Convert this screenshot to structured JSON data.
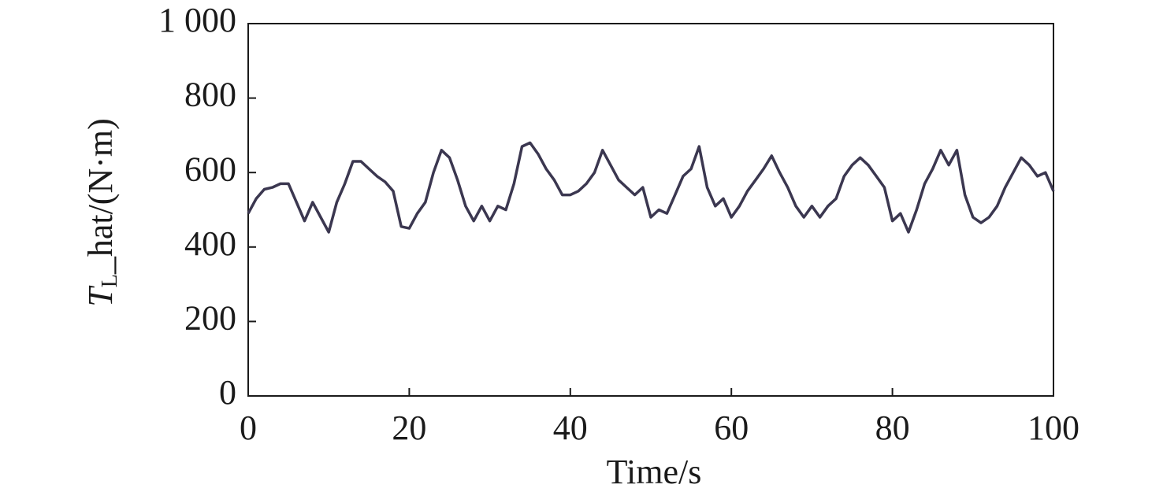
{
  "chart_data": {
    "type": "line",
    "xlabel": "Time/s",
    "ylabel": [
      "T",
      "L",
      "_hat/(N·m)"
    ],
    "x": [
      0,
      1,
      2,
      3,
      4,
      5,
      6,
      7,
      8,
      9,
      10,
      11,
      12,
      13,
      14,
      15,
      16,
      17,
      18,
      19,
      20,
      21,
      22,
      23,
      24,
      25,
      26,
      27,
      28,
      29,
      30,
      31,
      32,
      33,
      34,
      35,
      36,
      37,
      38,
      39,
      40,
      41,
      42,
      43,
      44,
      45,
      46,
      47,
      48,
      49,
      50,
      51,
      52,
      53,
      54,
      55,
      56,
      57,
      58,
      59,
      60,
      61,
      62,
      63,
      64,
      65,
      66,
      67,
      68,
      69,
      70,
      71,
      72,
      73,
      74,
      75,
      76,
      77,
      78,
      79,
      80,
      81,
      82,
      83,
      84,
      85,
      86,
      87,
      88,
      89,
      90,
      91,
      92,
      93,
      94,
      95,
      96,
      97,
      98,
      99,
      100
    ],
    "series": [
      {
        "name": "T_hat",
        "color": "#3b3750",
        "values": [
          490,
          530,
          555,
          560,
          570,
          570,
          520,
          470,
          520,
          480,
          440,
          520,
          570,
          630,
          630,
          610,
          590,
          575,
          550,
          455,
          450,
          490,
          520,
          600,
          660,
          640,
          580,
          510,
          470,
          510,
          470,
          510,
          500,
          570,
          670,
          680,
          650,
          610,
          580,
          540,
          540,
          550,
          570,
          600,
          660,
          620,
          580,
          560,
          540,
          560,
          480,
          500,
          490,
          540,
          590,
          610,
          670,
          560,
          510,
          530,
          480,
          510,
          550,
          580,
          610,
          645,
          600,
          560,
          510,
          480,
          510,
          480,
          510,
          530,
          590,
          620,
          640,
          620,
          590,
          560,
          470,
          490,
          440,
          500,
          570,
          610,
          660,
          620,
          660,
          540,
          480,
          465,
          480,
          510,
          560,
          600,
          640,
          620,
          590,
          600,
          550
        ]
      }
    ],
    "xlim": [
      0,
      100
    ],
    "xticks": [
      0,
      20,
      40,
      60,
      80,
      100
    ],
    "ylim": [
      0,
      1000
    ],
    "yticks": [
      0,
      200,
      400,
      600,
      800,
      {
        "value": 1000,
        "label": "1 000"
      }
    ],
    "grid": false
  }
}
